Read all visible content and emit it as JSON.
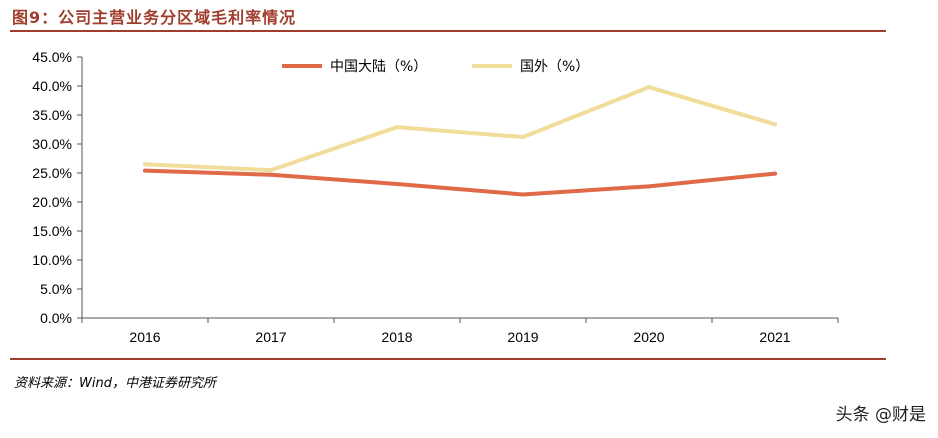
{
  "header": {
    "title": "图9：公司主营业务分区域毛利率情况"
  },
  "colors": {
    "accent": "#a13d2d",
    "mainland": "#e06a48",
    "overseas": "#f0dd9a",
    "axis": "#555555"
  },
  "chart_data": {
    "type": "line",
    "title": "图9：公司主营业务分区域毛利率情况",
    "x": [
      "2016",
      "2017",
      "2018",
      "2019",
      "2020",
      "2021"
    ],
    "series": [
      {
        "name": "中国大陆（%）",
        "values": [
          25.4,
          24.7,
          23.1,
          21.3,
          22.7,
          24.9
        ]
      },
      {
        "name": "国外（%）",
        "values": [
          26.5,
          25.5,
          32.9,
          31.2,
          39.8,
          33.4
        ]
      }
    ],
    "ylim": [
      0,
      45
    ],
    "yticks": [
      "0.0%",
      "5.0%",
      "10.0%",
      "15.0%",
      "20.0%",
      "25.0%",
      "30.0%",
      "35.0%",
      "40.0%",
      "45.0%"
    ],
    "xlabel": "",
    "ylabel": "",
    "legend": "top-center"
  },
  "footer": {
    "source": "资料来源：Wind，中港证券研究所",
    "watermark": "头条 @财是"
  }
}
